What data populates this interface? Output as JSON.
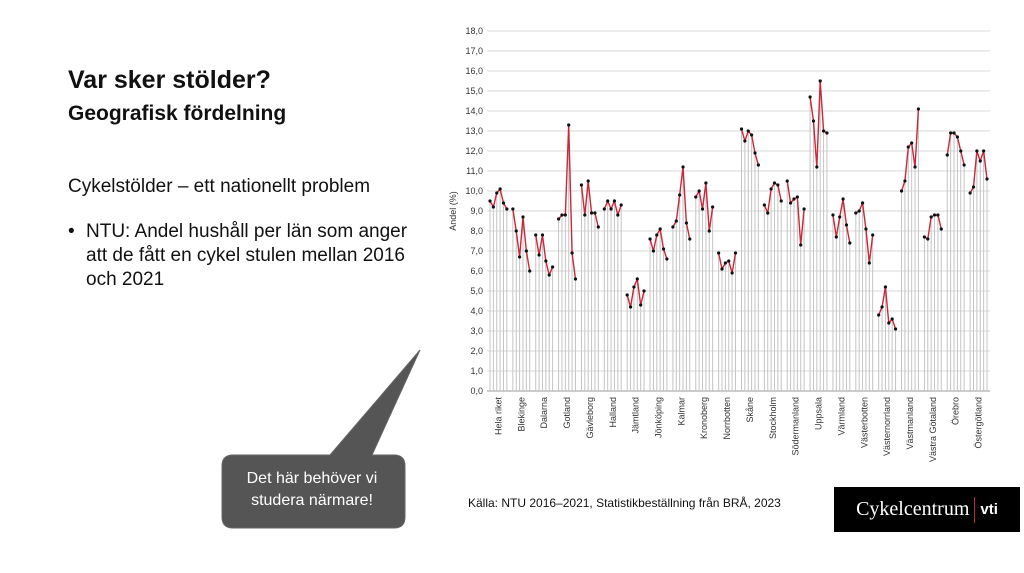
{
  "slide": {
    "title": "Var sker stölder?",
    "subtitle": "Geografisk fördelning",
    "heading": "Cykelstölder – ett nationellt problem",
    "bullet": "NTU: Andel hushåll per län som anger att de fått en cykel stulen mellan 2016 och 2021",
    "callout": "Det här behöver vi studera närmare!",
    "source": "Källa: NTU 2016–2021, Statistikbeställning från BRÅ, 2023",
    "logo_left": "Cykelcentrum",
    "logo_right": "vti"
  },
  "chart_data": {
    "type": "line",
    "y_label": "Andel (%)",
    "categories": [
      "Hela riket",
      "Blekinge",
      "Dalarna",
      "Gotland",
      "Gävleborg",
      "Halland",
      "Jämtland",
      "Jönköping",
      "Kalmar",
      "Kronoberg",
      "Norrbotten",
      "Skåne",
      "Stockholm",
      "Södermanland",
      "Uppsala",
      "Värmland",
      "Västerbotten",
      "Västernorrland",
      "Västmanland",
      "Västra Götaland",
      "Örebro",
      "Östergötland"
    ],
    "values": [
      [
        9.5,
        9.2,
        9.9,
        10.1,
        9.4,
        9.1
      ],
      [
        9.1,
        8.0,
        6.7,
        8.7,
        7.0,
        6.0
      ],
      [
        7.8,
        6.8,
        7.8,
        6.5,
        5.8,
        6.2
      ],
      [
        8.6,
        8.8,
        8.8,
        13.3,
        6.9,
        5.6
      ],
      [
        10.3,
        8.8,
        10.5,
        8.9,
        8.9,
        8.2
      ],
      [
        9.1,
        9.5,
        9.1,
        9.5,
        8.8,
        9.3
      ],
      [
        4.8,
        4.2,
        5.2,
        5.6,
        4.3,
        5.0
      ],
      [
        7.6,
        7.0,
        7.8,
        8.1,
        7.1,
        6.6
      ],
      [
        8.2,
        8.5,
        9.8,
        11.2,
        8.4,
        7.6
      ],
      [
        9.7,
        10.0,
        9.1,
        10.4,
        8.0,
        9.2
      ],
      [
        6.9,
        6.1,
        6.4,
        6.5,
        5.9,
        6.9
      ],
      [
        13.1,
        12.5,
        13.0,
        12.8,
        11.9,
        11.3
      ],
      [
        9.3,
        8.9,
        10.1,
        10.4,
        10.3,
        9.5
      ],
      [
        10.5,
        9.4,
        9.6,
        9.7,
        7.3,
        9.1
      ],
      [
        14.7,
        13.5,
        11.2,
        15.5,
        13.0,
        12.9
      ],
      [
        8.8,
        7.7,
        8.7,
        9.6,
        8.3,
        7.4
      ],
      [
        8.9,
        9.0,
        9.4,
        8.1,
        6.4,
        7.8
      ],
      [
        3.8,
        4.2,
        5.2,
        3.4,
        3.6,
        3.1
      ],
      [
        10.0,
        10.5,
        12.2,
        12.4,
        11.2,
        14.1
      ],
      [
        7.7,
        7.6,
        8.7,
        8.8,
        8.8,
        8.1
      ],
      [
        11.8,
        12.9,
        12.9,
        12.7,
        12.0,
        11.3
      ],
      [
        9.9,
        10.2,
        12.0,
        11.5,
        12.0,
        10.6
      ]
    ],
    "color": "#c8283a",
    "marker_color": "#111111",
    "drop_line_color": "#c4c4c4",
    "grid": true,
    "ylim": [
      0,
      18
    ],
    "yticks": [
      {
        "value": 0,
        "label": "0,0"
      },
      {
        "value": 1,
        "label": "1,0"
      },
      {
        "value": 2,
        "label": "2,0"
      },
      {
        "value": 3,
        "label": "3,0"
      },
      {
        "value": 4,
        "label": "4,0"
      },
      {
        "value": 5,
        "label": "5,0"
      },
      {
        "value": 6,
        "label": "6,0"
      },
      {
        "value": 7,
        "label": "7,0"
      },
      {
        "value": 8,
        "label": "8,0"
      },
      {
        "value": 9,
        "label": "9,0"
      },
      {
        "value": 10,
        "label": "10,0"
      },
      {
        "value": 11,
        "label": "11,0"
      },
      {
        "value": 12,
        "label": "12,0"
      },
      {
        "value": 13,
        "label": "13,0"
      },
      {
        "value": 14,
        "label": "14,0"
      },
      {
        "value": 15,
        "label": "15,0"
      },
      {
        "value": 16,
        "label": "16,0"
      },
      {
        "value": 17,
        "label": "17,0"
      },
      {
        "value": 18,
        "label": "18,0"
      }
    ]
  }
}
